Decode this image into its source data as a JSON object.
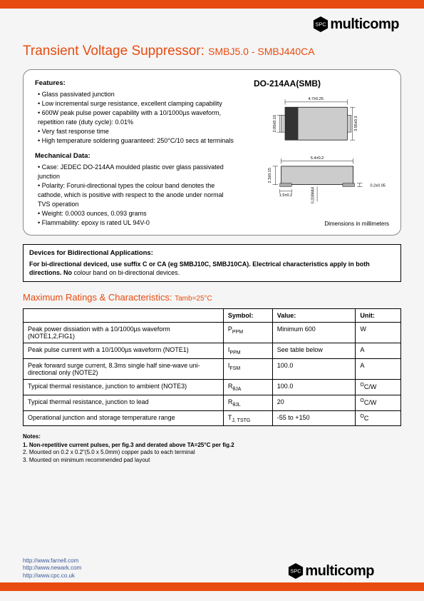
{
  "brand": "multicomp",
  "title_main": "Transient Voltage Suppressor:",
  "title_sub": "SMBJ5.0 - SMBJ440CA",
  "package_label": "DO-214AA(SMB)",
  "features_heading": "Features:",
  "features": [
    "Glass passivated junction",
    "Low incremental surge resistance, excellent clamping capability",
    "600W peak pulse power capability with a 10/1000µs waveform, repetition rate (duty cycle): 0.01%",
    "Very fast response time",
    "High temperature soldering guaranteed: 250°C/10 secs at terminals"
  ],
  "mech_heading": "Mechanical Data:",
  "mechanical": [
    "Case: JEDEC DO-214AA moulded plastic over glass passivated junction",
    "Polarity: Foruni-directional types the colour band denotes the cathode, which is positive with respect to the anode under normal TVS operation",
    "Weight: 0.0003 ounces, 0.093 grams",
    "Flammability: epoxy is rated UL 94V-0"
  ],
  "dim_note": "Dimensions in millimeters",
  "diag": {
    "top_w": "4.7±0.25",
    "top_h_left": "2.05±0.15",
    "top_h_right": "3.95±0.3",
    "bot_w": "5.4±0.2",
    "bot_h": "2.3±0.15",
    "foot_w": "1.5±0.2",
    "foot_h": "0.2±0.05",
    "lead": "0.203MAX"
  },
  "bidir_heading": "Devices for Bidirectional Applications:",
  "bidir_text_bold": "For bi-directional deviced, use suffix C or CA (eg SMBJ10C, SMBJ10CA).  Electrical characteristics apply in both directions.  No",
  "bidir_text_rest": "colour band on bi-directional devices.",
  "ratings_title": "Maximum Ratings & Characteristics:",
  "ratings_note": "Tamb=25°C",
  "table": {
    "headers": [
      "",
      "Symbol:",
      "Value:",
      "Unit:"
    ],
    "rows": [
      {
        "desc": "Peak power dissiation with a 10/1000µs waveform (NOTE1,2,FIG1)",
        "sym": "P",
        "sub": "PPM",
        "val": "Minimum 600",
        "unit": "W"
      },
      {
        "desc": "Peak pulse current with a 10/1000µs waveform (NOTE1)",
        "sym": "I",
        "sub": "PPM",
        "val": "See table below",
        "unit": "A"
      },
      {
        "desc": "Peak forward surge current, 8.3ms single half sine-wave uni-directional only (NOTE2)",
        "sym": "I",
        "sub": "FSM",
        "val": "100.0",
        "unit": "A"
      },
      {
        "desc": "Typical thermal resistance, junction to ambient (NOTE3)",
        "sym": "R",
        "sub": "θJA",
        "val": "100.0",
        "unit": "°C/W"
      },
      {
        "desc": "Typical thermal resistance, junction to lead",
        "sym": "R",
        "sub": "θJL",
        "val": "20",
        "unit": "°C/W"
      },
      {
        "desc": "Operational junction and storage temperature range",
        "sym": "T",
        "sub": "J, TSTG",
        "extra": "",
        "val": "-55 to +150",
        "unit": "°C"
      }
    ]
  },
  "notes_heading": "Notes:",
  "notes": [
    "1. Non-repetitive current pulses, per fig.3 and derated above TA=25°C per fig.2",
    "2. Mounted on 0.2 x 0.2\"(5.0 x 5.0mm) copper pads to each terminal",
    "3. Mounted on minimum recommended pad layout"
  ],
  "links": [
    "http://www.farnell.com",
    "http://www.newark.com",
    "http://www.cpc.co.uk"
  ],
  "colors": {
    "accent": "#e84b10",
    "body_bg": "#f5f5f5"
  }
}
